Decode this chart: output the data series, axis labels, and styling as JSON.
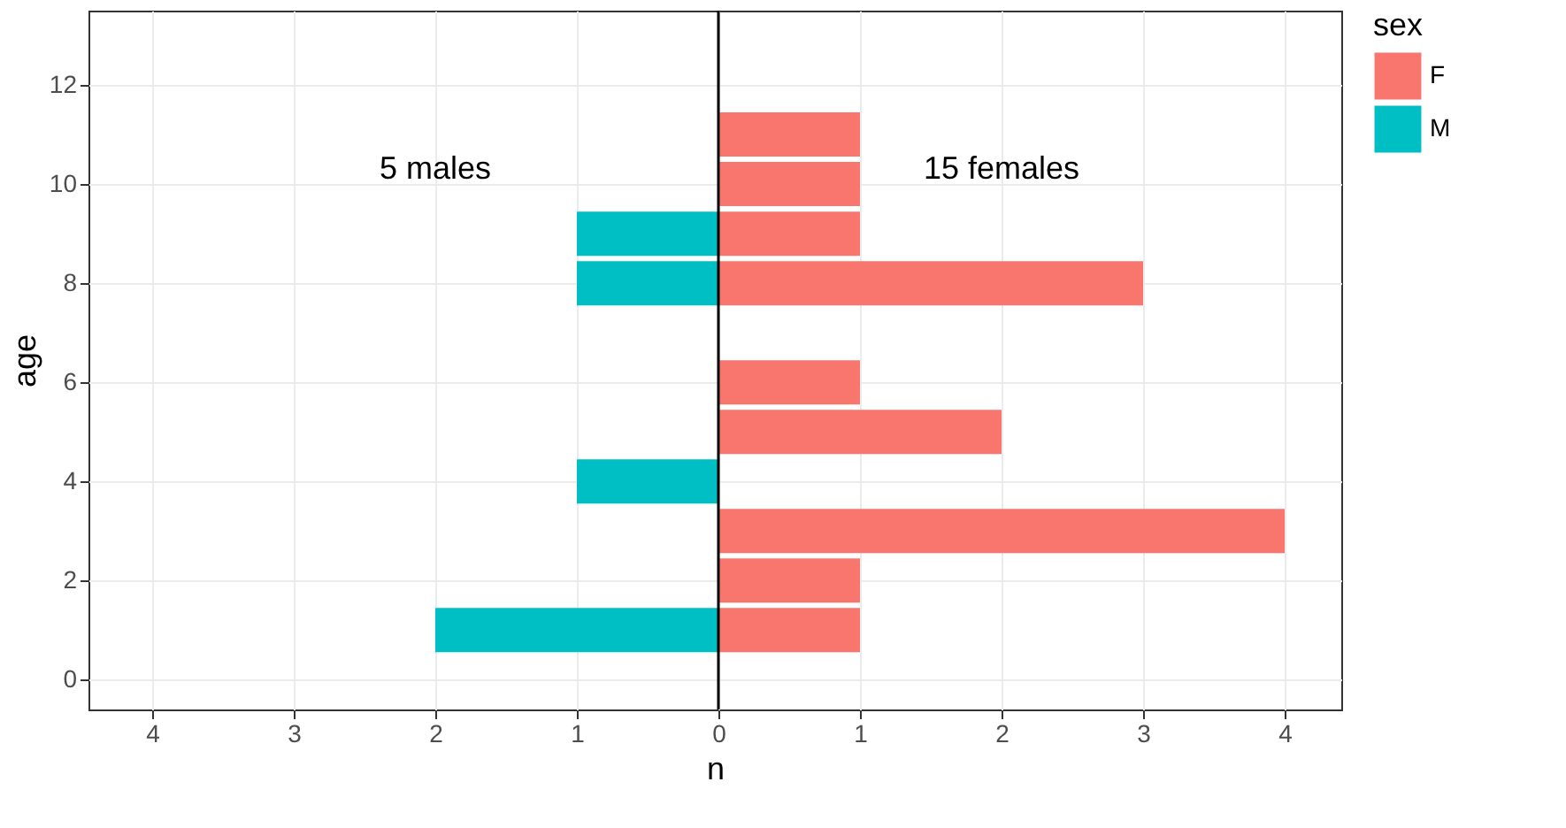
{
  "chart_data": {
    "type": "bar",
    "orientation": "horizontal",
    "xlabel": "n",
    "ylabel": "age",
    "legend_title": "sex",
    "legend": "right",
    "grid": true,
    "xlim": [
      -4.45,
      4.4
    ],
    "xticks": [
      {
        "value": -4,
        "label": "4"
      },
      {
        "value": -3,
        "label": "3"
      },
      {
        "value": -2,
        "label": "2"
      },
      {
        "value": -1,
        "label": "1"
      },
      0,
      1,
      2,
      3,
      4
    ],
    "ylim": [
      -0.6,
      13.5
    ],
    "yticks": [
      0,
      2,
      4,
      6,
      8,
      10,
      12
    ],
    "series": [
      {
        "name": "F",
        "color": "#f8766d",
        "x": [
          1,
          2,
          3,
          5,
          6,
          8,
          9,
          10,
          11
        ],
        "values": [
          1,
          1,
          4,
          2,
          1,
          3,
          1,
          1,
          1
        ]
      },
      {
        "name": "M",
        "color": "#00bfc4",
        "x": [
          1,
          4,
          8,
          9
        ],
        "values": [
          -2,
          -1,
          -1,
          -1
        ]
      }
    ],
    "ref_lines": [
      {
        "axis": "x",
        "value": 0,
        "color": "#000000"
      }
    ],
    "annotations": [
      "5 males",
      "15 females"
    ]
  }
}
